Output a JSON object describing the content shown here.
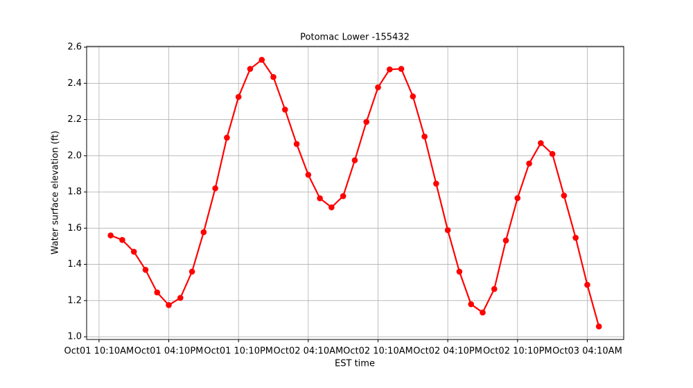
{
  "chart_data": {
    "type": "line",
    "title": "Potomac Lower -155432",
    "x_label": "EST time",
    "y_label": "Water surface elevation (ft)",
    "x": [
      "Oct01 11:10AM",
      "Oct01 12:10PM",
      "Oct01 01:10PM",
      "Oct01 02:10PM",
      "Oct01 03:10PM",
      "Oct01 04:10PM",
      "Oct01 05:10PM",
      "Oct01 06:10PM",
      "Oct01 07:10PM",
      "Oct01 08:10PM",
      "Oct01 09:10PM",
      "Oct01 10:10PM",
      "Oct01 11:10PM",
      "Oct02 12:10AM",
      "Oct02 01:10AM",
      "Oct02 02:10AM",
      "Oct02 03:10AM",
      "Oct02 04:10AM",
      "Oct02 05:10AM",
      "Oct02 06:10AM",
      "Oct02 07:10AM",
      "Oct02 08:10AM",
      "Oct02 09:10AM",
      "Oct02 10:10AM",
      "Oct02 11:10AM",
      "Oct02 12:10PM",
      "Oct02 01:10PM",
      "Oct02 02:10PM",
      "Oct02 03:10PM",
      "Oct02 04:10PM",
      "Oct02 05:10PM",
      "Oct02 06:10PM",
      "Oct02 07:10PM",
      "Oct02 08:10PM",
      "Oct02 09:10PM",
      "Oct02 10:10PM",
      "Oct02 11:10PM",
      "Oct03 12:10AM",
      "Oct03 01:10AM",
      "Oct03 02:10AM",
      "Oct03 03:10AM",
      "Oct03 04:10AM",
      "Oct03 05:10AM"
    ],
    "values": [
      1.56,
      1.535,
      1.47,
      1.37,
      1.245,
      1.175,
      1.215,
      1.36,
      1.578,
      1.82,
      2.1,
      2.325,
      2.48,
      2.53,
      2.435,
      2.255,
      2.065,
      1.895,
      1.765,
      1.715,
      1.777,
      1.975,
      2.187,
      2.378,
      2.477,
      2.48,
      2.328,
      2.106,
      1.846,
      1.589,
      1.36,
      1.18,
      1.134,
      1.264,
      1.532,
      1.766,
      1.957,
      2.07,
      2.01,
      1.78,
      1.547,
      1.287,
      1.057
    ],
    "color": "#ff0000",
    "xlim": [
      "Oct01 09:06AM",
      "Oct03 07:18AM"
    ],
    "xticks": [
      "Oct01 10:10AM",
      "Oct01 04:10PM",
      "Oct01 10:10PM",
      "Oct02 04:10AM",
      "Oct02 10:10AM",
      "Oct02 04:10PM",
      "Oct02 10:10PM",
      "Oct03 04:10AM"
    ],
    "ylim": [
      0.985,
      2.604
    ],
    "yticks": [
      {
        "value": 1,
        "label": "1.0"
      },
      {
        "value": 1.2,
        "label": "1.2"
      },
      {
        "value": 1.4,
        "label": "1.4"
      },
      {
        "value": 1.6,
        "label": "1.6"
      },
      {
        "value": 1.8,
        "label": "1.8"
      },
      {
        "value": 2,
        "label": "2.0"
      },
      {
        "value": 2.2,
        "label": "2.2"
      },
      {
        "value": 2.4,
        "label": "2.4"
      },
      {
        "value": 2.6,
        "label": "2.6"
      }
    ],
    "grid": true
  }
}
